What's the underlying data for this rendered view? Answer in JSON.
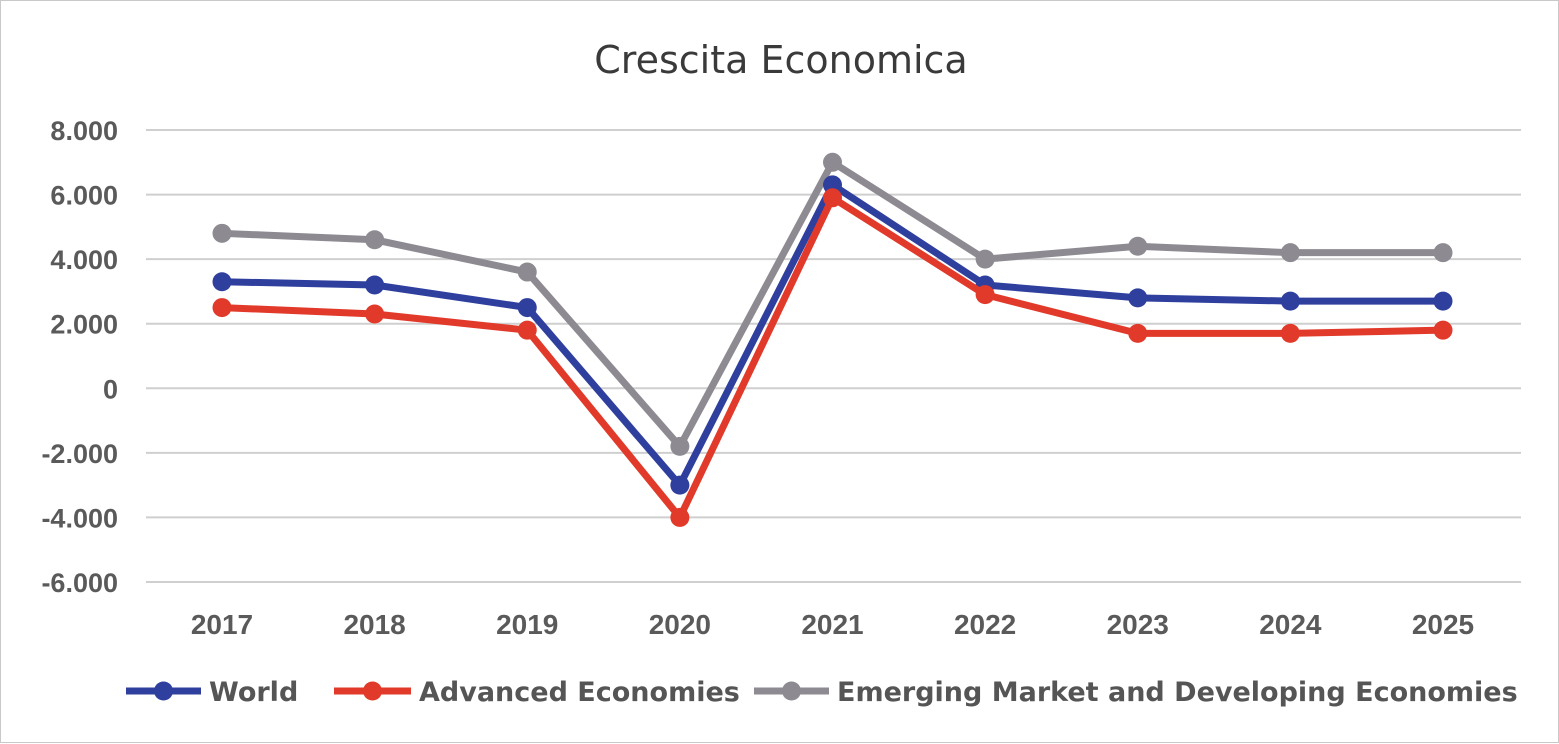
{
  "chart_data": {
    "type": "line",
    "title": "Crescita Economica",
    "xlabel": "",
    "ylabel": "",
    "categories": [
      "2017",
      "2018",
      "2019",
      "2020",
      "2021",
      "2022",
      "2023",
      "2024",
      "2025"
    ],
    "ylim": [
      -6,
      8
    ],
    "yticks": [
      8,
      6,
      4,
      2,
      0,
      -2,
      -4,
      -6
    ],
    "ytick_labels": [
      "8.000",
      "6.000",
      "4.000",
      "2.000",
      "0",
      "-2.000",
      "-4.000",
      "-6.000"
    ],
    "grid": true,
    "legend_position": "bottom",
    "series": [
      {
        "name": "Emerging Market and Developing Economies",
        "color": "#8e8a92",
        "values": [
          4.8,
          4.6,
          3.6,
          -1.8,
          7.0,
          4.0,
          4.4,
          4.2,
          4.2
        ]
      },
      {
        "name": "World",
        "color": "#2f3f9e",
        "values": [
          3.3,
          3.2,
          2.5,
          -3.0,
          6.3,
          3.2,
          2.8,
          2.7,
          2.7
        ]
      },
      {
        "name": "Advanced Economies",
        "color": "#e23a2a",
        "values": [
          2.5,
          2.3,
          1.8,
          -4.0,
          5.9,
          2.9,
          1.7,
          1.7,
          1.8
        ]
      }
    ],
    "legend_order": [
      "World",
      "Advanced Economies",
      "Emerging Market and Developing Economies"
    ]
  }
}
